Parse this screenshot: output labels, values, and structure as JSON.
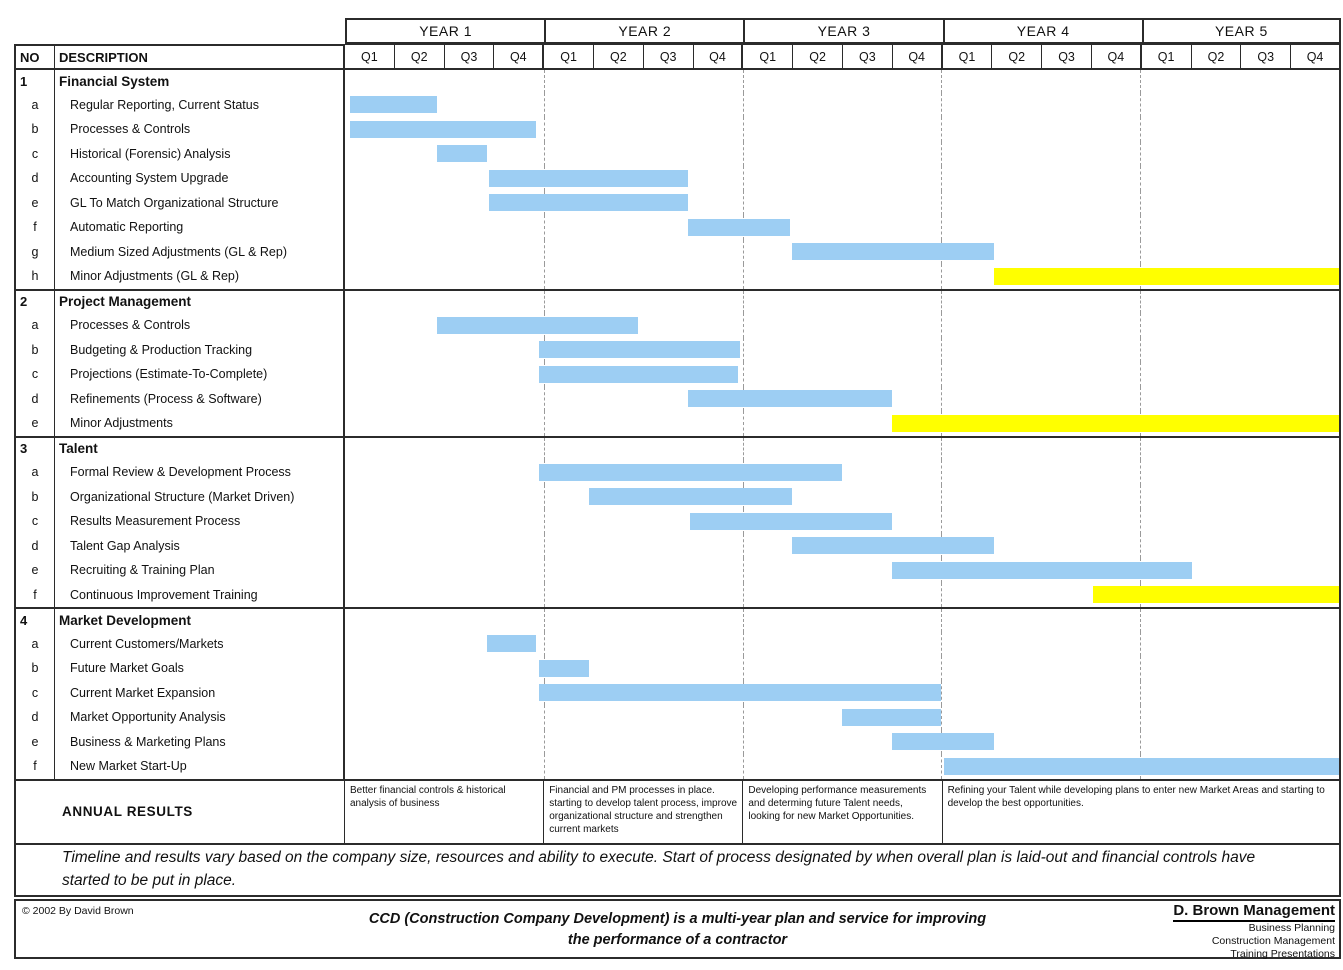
{
  "header": {
    "no_label": "NO",
    "description_label": "DESCRIPTION"
  },
  "chart_data": {
    "type": "gantt",
    "x_axis": {
      "unit": "quarter",
      "years": [
        "YEAR 1",
        "YEAR 2",
        "YEAR 3",
        "YEAR 4",
        "YEAR 5"
      ],
      "quarter_labels": [
        "Q1",
        "Q2",
        "Q3",
        "Q4"
      ],
      "total_quarters": 20
    },
    "bar_colors": {
      "blue": "#9DCEF3",
      "yellow": "#FFFF00"
    },
    "sections": [
      {
        "no": "1",
        "title": "Financial System",
        "items": [
          {
            "id": "a",
            "label": "Regular Reporting, Current Status",
            "bar": {
              "start": 0.1,
              "end": 1.85,
              "color": "blue"
            }
          },
          {
            "id": "b",
            "label": "Processes & Controls",
            "bar": {
              "start": 0.1,
              "end": 3.85,
              "color": "blue"
            }
          },
          {
            "id": "c",
            "label": "Historical (Forensic) Analysis",
            "bar": {
              "start": 1.85,
              "end": 2.85,
              "color": "blue"
            }
          },
          {
            "id": "d",
            "label": "Accounting System Upgrade",
            "bar": {
              "start": 2.9,
              "end": 6.9,
              "color": "blue"
            }
          },
          {
            "id": "e",
            "label": "GL To Match Organizational Structure",
            "bar": {
              "start": 2.9,
              "end": 6.9,
              "color": "blue"
            }
          },
          {
            "id": "f",
            "label": "Automatic Reporting",
            "bar": {
              "start": 6.9,
              "end": 8.95,
              "color": "blue"
            }
          },
          {
            "id": "g",
            "label": "Medium Sized Adjustments (GL & Rep)",
            "bar": {
              "start": 9.0,
              "end": 13.05,
              "color": "blue"
            }
          },
          {
            "id": "h",
            "label": "Minor Adjustments (GL & Rep)",
            "bar": {
              "start": 13.05,
              "end": 20,
              "color": "yellow"
            }
          }
        ]
      },
      {
        "no": "2",
        "title": "Project Management",
        "items": [
          {
            "id": "a",
            "label": "Processes & Controls",
            "bar": {
              "start": 1.85,
              "end": 5.9,
              "color": "blue"
            }
          },
          {
            "id": "b",
            "label": "Budgeting & Production Tracking",
            "bar": {
              "start": 3.9,
              "end": 7.95,
              "color": "blue"
            }
          },
          {
            "id": "c",
            "label": "Projections (Estimate-To-Complete)",
            "bar": {
              "start": 3.9,
              "end": 7.9,
              "color": "blue"
            }
          },
          {
            "id": "d",
            "label": "Refinements (Process & Software)",
            "bar": {
              "start": 6.9,
              "end": 11.0,
              "color": "blue"
            }
          },
          {
            "id": "e",
            "label": "Minor Adjustments",
            "bar": {
              "start": 11.0,
              "end": 20,
              "color": "yellow"
            }
          }
        ]
      },
      {
        "no": "3",
        "title": "Talent",
        "items": [
          {
            "id": "a",
            "label": "Formal Review & Development Process",
            "bar": {
              "start": 3.9,
              "end": 10.0,
              "color": "blue"
            }
          },
          {
            "id": "b",
            "label": "Organizational Structure (Market Driven)",
            "bar": {
              "start": 4.9,
              "end": 9.0,
              "color": "blue"
            }
          },
          {
            "id": "c",
            "label": "Results Measurement Process",
            "bar": {
              "start": 6.95,
              "end": 11.0,
              "color": "blue"
            }
          },
          {
            "id": "d",
            "label": "Talent Gap Analysis",
            "bar": {
              "start": 9.0,
              "end": 13.05,
              "color": "blue"
            }
          },
          {
            "id": "e",
            "label": "Recruiting & Training Plan",
            "bar": {
              "start": 11.0,
              "end": 17.05,
              "color": "blue"
            }
          },
          {
            "id": "f",
            "label": "Continuous Improvement Training",
            "bar": {
              "start": 15.05,
              "end": 20,
              "color": "yellow"
            }
          }
        ]
      },
      {
        "no": "4",
        "title": "Market Development",
        "items": [
          {
            "id": "a",
            "label": "Current Customers/Markets",
            "bar": {
              "start": 2.85,
              "end": 3.85,
              "color": "blue"
            }
          },
          {
            "id": "b",
            "label": "Future Market Goals",
            "bar": {
              "start": 3.9,
              "end": 4.9,
              "color": "blue"
            }
          },
          {
            "id": "c",
            "label": "Current Market Expansion",
            "bar": {
              "start": 3.9,
              "end": 12.0,
              "color": "blue"
            }
          },
          {
            "id": "d",
            "label": "Market Opportunity Analysis",
            "bar": {
              "start": 10.0,
              "end": 12.0,
              "color": "blue"
            }
          },
          {
            "id": "e",
            "label": "Business & Marketing Plans",
            "bar": {
              "start": 11.0,
              "end": 13.05,
              "color": "blue"
            }
          },
          {
            "id": "f",
            "label": "New Market Start-Up",
            "bar": {
              "start": 12.05,
              "end": 20,
              "color": "blue"
            }
          }
        ]
      }
    ]
  },
  "annual": {
    "label": "ANNUAL RESULTS",
    "cells": [
      {
        "years": 1,
        "text": "Better financial controls & historical analysis of business"
      },
      {
        "years": 1,
        "text": "Financial and PM processes in place. starting to develop talent process, improve organizational structure and strengthen current markets"
      },
      {
        "years": 1,
        "text": "Developing performance measurements and determing future Talent needs, looking for new Market Opportunities."
      },
      {
        "years": 2,
        "text": "Refining your Talent while developing plans to enter new Market Areas and starting to develop the best opportunities."
      }
    ]
  },
  "note": "Timeline and results vary based on the company size, resources and ability to execute.  Start of process designated by when overall plan is laid-out and financial controls have started to be put in place.",
  "footer": {
    "copyright": "© 2002 By David Brown",
    "statement": "CCD (Construction Company Development) is a multi-year plan and service for improving the performance of a contractor",
    "company": "D. Brown Management",
    "services": [
      "Business Planning",
      "Construction Management",
      "Training Presentations"
    ]
  }
}
